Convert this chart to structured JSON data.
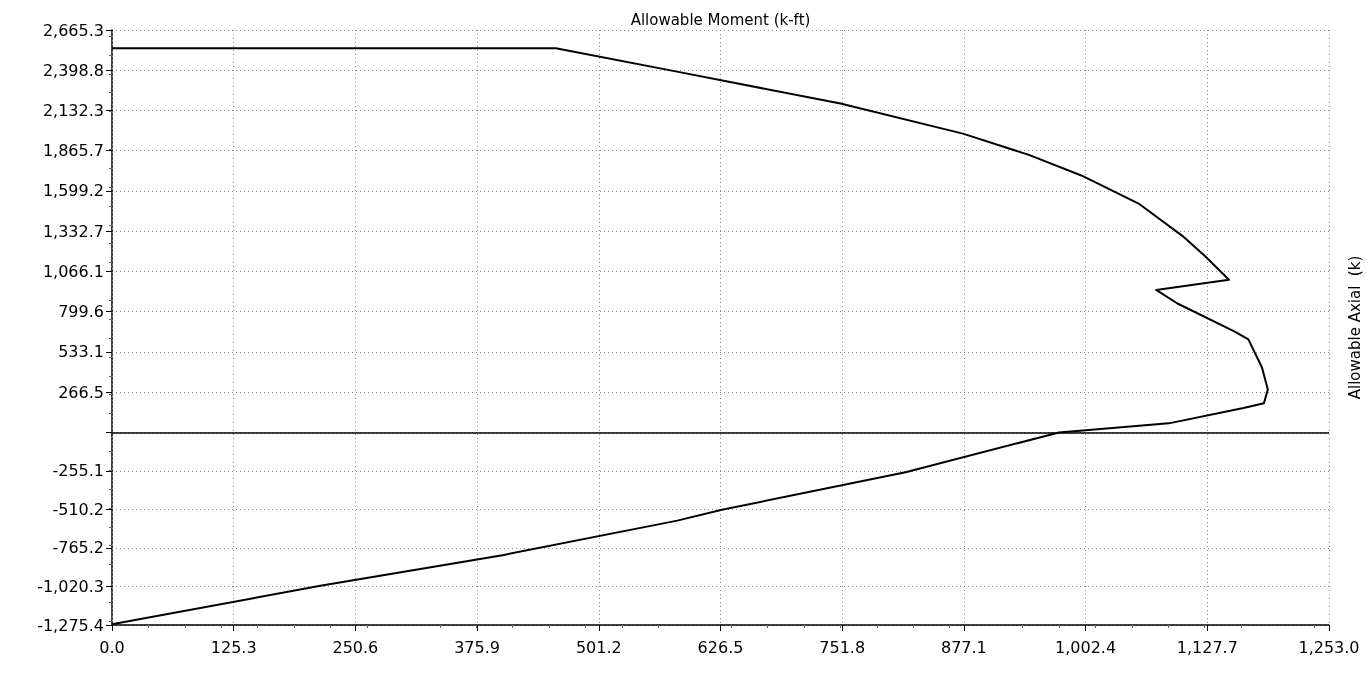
{
  "chart_data": {
    "type": "line",
    "xlabel": "Allowable Moment (k-ft)",
    "ylabel": "Allowable Axial  (k)",
    "x": [
      0,
      457,
      583,
      750,
      876,
      944,
      998,
      1057,
      1102,
      1125,
      1150,
      1075,
      1097,
      1156,
      1170,
      1184,
      1190,
      1186,
      1165,
      1088,
      975,
      817,
      628,
      582,
      402,
      214.5,
      0
    ],
    "series": [
      {
        "color": "#000000",
        "values": [
          2545,
          2545,
          2388,
          2178,
          1979,
          1838,
          1702,
          1516,
          1302,
          1170,
          1011,
          944,
          854,
          668,
          616,
          430,
          285,
          193,
          162,
          60,
          0,
          -264,
          -512,
          -584,
          -813,
          -1016,
          -1270
        ]
      }
    ],
    "xlim": [
      0,
      1253
    ],
    "xticks": [
      {
        "value": 0,
        "label": "0.0"
      },
      125.3,
      250.6,
      375.9,
      501.2,
      626.5,
      751.8,
      877.1,
      {
        "value": 1002.4,
        "label": "1,002.4"
      },
      {
        "value": 1127.7,
        "label": "1,127.7"
      },
      {
        "value": 1253,
        "label": "1,253.0"
      }
    ],
    "ylim": [
      -1275.4,
      2665.3
    ],
    "yticks": [
      {
        "value": -1275.4,
        "label": "-1,275.4"
      },
      {
        "value": -1020.3,
        "label": "-1,020.3"
      },
      -765.2,
      -510.2,
      -255.1,
      {
        "value": 0,
        "label": null
      },
      266.5,
      533.1,
      799.6,
      {
        "value": 1066.1,
        "label": "1,066.1"
      },
      {
        "value": 1332.7,
        "label": "1,332.7"
      },
      {
        "value": 1599.2,
        "label": "1,599.2"
      },
      {
        "value": 1865.7,
        "label": "1,865.7"
      },
      {
        "value": 2132.3,
        "label": "2,132.3"
      },
      {
        "value": 2398.8,
        "label": "2,398.8"
      },
      {
        "value": 2665.3,
        "label": "2,665.3"
      }
    ],
    "ref_lines": [
      {
        "axis": "y",
        "value": 0,
        "color": "#000000"
      }
    ],
    "grid": true,
    "marker": "none",
    "line_style": "solid"
  }
}
